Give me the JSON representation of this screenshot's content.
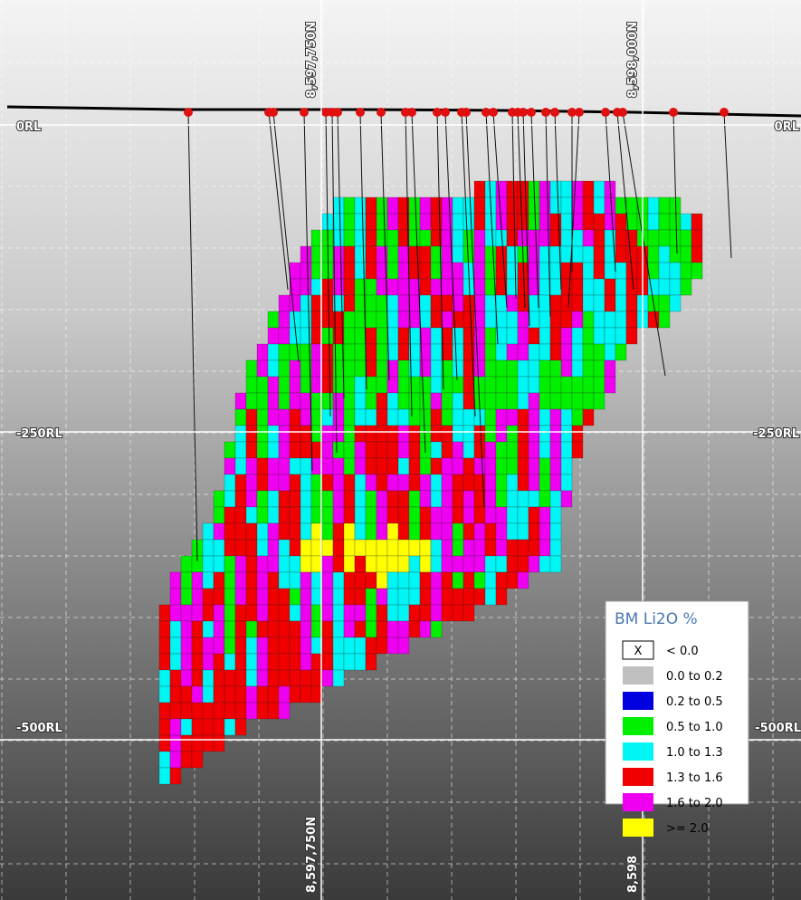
{
  "section_view": {
    "rl_labels_left": [
      "0RL",
      "-250RL",
      "-500RL"
    ],
    "rl_labels_right": [
      "0RL",
      "-250RL",
      "-500RL"
    ],
    "northing_top": [
      "8,597,750N",
      "8,598,000N"
    ],
    "northing_bottom": [
      "8,597,750N",
      "8,598"
    ]
  },
  "legend": {
    "title": "BM Li2O %",
    "items": [
      {
        "symbol": "X",
        "label": "< 0.0"
      },
      {
        "label": "0.0 to 0.2"
      },
      {
        "label": "0.2 to 0.5"
      },
      {
        "label": "0.5 to 1.0"
      },
      {
        "label": "1.0 to 1.3"
      },
      {
        "label": "1.3 to 1.6"
      },
      {
        "label": "1.6 to 2.0"
      },
      {
        "label": ">= 2.0"
      }
    ]
  }
}
